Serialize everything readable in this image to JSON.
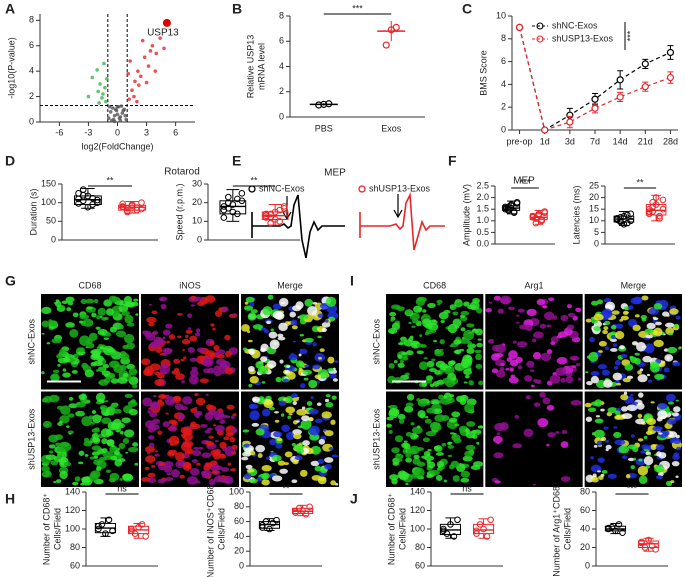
{
  "chart_data": [
    {
      "type": "scatter",
      "panel": "A",
      "xlabel": "log2(FoldChange)",
      "ylabel": "-log10(P-value)",
      "xlim": [
        -8,
        8
      ],
      "xticks": [
        -6,
        -3,
        0,
        3,
        6
      ],
      "ylim": [
        0,
        8.5
      ],
      "yticks": [
        0,
        2,
        4,
        6,
        8
      ],
      "thresholds": {
        "x": [
          -1,
          1
        ],
        "y": 1.3
      },
      "series": [
        {
          "color": "#555555",
          "x": [
            -0.9,
            -0.7,
            -0.5,
            -0.3,
            -0.1,
            0.1,
            0.3,
            0.5,
            0.7,
            0.9,
            -0.8,
            -0.4,
            0,
            0.4,
            0.8,
            -0.6,
            -0.2,
            0.2,
            0.6,
            0,
            -0.3,
            0.3
          ],
          "values": [
            0.3,
            0.8,
            1.1,
            0.5,
            0.9,
            1.2,
            0.4,
            0.7,
            1.0,
            0.2,
            1.2,
            0.2,
            0.6,
            1.25,
            0.5,
            0.1,
            1.0,
            0.3,
            0.9,
            1.2,
            0.05,
            0.1
          ]
        },
        {
          "color": "#3bb44a",
          "x": [
            -1.2,
            -1.5,
            -1.8,
            -2.1,
            -1.3,
            -2.6,
            -1.6,
            -1.1,
            -2.0,
            -1.4,
            -3.0,
            -1.9
          ],
          "values": [
            1.6,
            2.2,
            3.0,
            4.1,
            2.7,
            3.5,
            1.9,
            3.4,
            2.4,
            4.6,
            2.0,
            1.5
          ]
        },
        {
          "color": "#e8262a",
          "x": [
            1.2,
            1.5,
            1.8,
            2.1,
            2.4,
            2.8,
            3.2,
            3.6,
            4.0,
            4.4,
            1.3,
            1.7,
            2.2,
            2.6,
            3.0,
            3.4,
            3.9,
            4.8,
            1.1,
            2.0
          ],
          "values": [
            1.8,
            2.5,
            3.2,
            4.0,
            3.6,
            5.1,
            4.4,
            6.0,
            5.4,
            6.6,
            4.8,
            2.0,
            2.9,
            6.4,
            3.1,
            5.6,
            4.0,
            5.8,
            3.8,
            1.6
          ]
        },
        {
          "color": "#e00000",
          "x": [
            5.1
          ],
          "values": [
            7.8
          ]
        }
      ],
      "annotation": "USP13"
    },
    {
      "type": "dot",
      "panel": "B",
      "ylabel": [
        "Relative USP13",
        "mRNA level"
      ],
      "categories": [
        "PBS",
        "Exos"
      ],
      "values": [
        1.0,
        6.8
      ],
      "errors": [
        0.1,
        0.8
      ],
      "points": [
        [
          0.95,
          1.0,
          1.05
        ],
        [
          5.7,
          6.9,
          7.1
        ]
      ],
      "colors": [
        "#000000",
        "#e8262a"
      ],
      "ylim": [
        0,
        8
      ],
      "yticks": [
        0,
        2,
        4,
        6,
        8
      ],
      "significance": "***"
    },
    {
      "type": "line",
      "panel": "C",
      "ylabel": "BMS Score",
      "categories": [
        "pre-op",
        "1d",
        "3d",
        "7d",
        "14d",
        "21d",
        "28d"
      ],
      "series": [
        {
          "name": "shNC-Exos",
          "color": "#000000",
          "values": [
            9,
            0,
            1.3,
            2.7,
            4.4,
            5.8,
            6.8
          ],
          "errors": [
            0,
            0,
            0.6,
            0.5,
            0.8,
            0.4,
            0.6
          ]
        },
        {
          "name": "shUSP13-Exos",
          "color": "#e8262a",
          "values": [
            9,
            0,
            0.7,
            1.9,
            2.9,
            3.8,
            4.6
          ],
          "errors": [
            0,
            0,
            0.5,
            0.4,
            0.4,
            0.4,
            0.5
          ]
        }
      ],
      "ylim": [
        0,
        10
      ],
      "yticks": [
        0,
        2,
        4,
        6,
        8,
        10
      ],
      "significance": "***"
    },
    {
      "type": "box",
      "panel": "D",
      "title": "Rotarod",
      "ylabel": "Duration (s)",
      "ylim": [
        0,
        150
      ],
      "yticks": [
        0,
        50,
        100,
        150
      ],
      "significance": "**",
      "groups": [
        {
          "color": "#000000",
          "points": [
            110,
            105,
            118,
            95,
            100,
            125,
            135,
            88,
            112,
            107,
            98,
            120
          ],
          "box": [
            85,
            95,
            108,
            118,
            138
          ]
        },
        {
          "color": "#e8262a",
          "points": [
            90,
            85,
            95,
            80,
            100,
            88,
            75,
            92,
            87,
            83,
            97,
            78
          ],
          "box": [
            72,
            80,
            88,
            93,
            103
          ]
        }
      ]
    },
    {
      "type": "box",
      "ylabel": "Speed (r.p.m.)",
      "ylim": [
        0,
        30
      ],
      "yticks": [
        0,
        10,
        20,
        30
      ],
      "significance": "**",
      "groups": [
        {
          "color": "#000000",
          "points": [
            18,
            20,
            15,
            22,
            25,
            12,
            17,
            19,
            14,
            21,
            16,
            23
          ],
          "box": [
            10,
            14,
            18,
            21,
            27
          ]
        },
        {
          "color": "#e8262a",
          "points": [
            14,
            12,
            15,
            10,
            17,
            13,
            9,
            11,
            16,
            18,
            12,
            14
          ],
          "box": [
            8,
            11,
            13,
            15,
            19
          ]
        }
      ]
    },
    {
      "type": "trace",
      "panel": "E",
      "title": "MEP",
      "series": [
        {
          "name": "shNC-Exos",
          "color": "#000000"
        },
        {
          "name": "shUSP13-Exos",
          "color": "#e8262a"
        }
      ]
    },
    {
      "type": "box",
      "panel": "F",
      "title": "MEP",
      "ylabel": "Amplitude (mV)",
      "ylim": [
        0,
        2.5
      ],
      "yticks": [
        {
          "value": 0,
          "label": "0.0"
        },
        0.5,
        {
          "value": 1,
          "label": "1.0"
        },
        1.5,
        {
          "value": 2,
          "label": "2.0"
        },
        2.5
      ],
      "significance": "***",
      "groups": [
        {
          "color": "#000000",
          "points": [
            1.6,
            1.5,
            1.7,
            1.4,
            1.8,
            1.55,
            1.45,
            1.65,
            1.35,
            1.75,
            1.5,
            1.6
          ],
          "box": [
            1.3,
            1.45,
            1.55,
            1.65,
            1.85
          ]
        },
        {
          "color": "#e8262a",
          "points": [
            1.2,
            1.1,
            1.3,
            1.0,
            1.4,
            1.15,
            0.9,
            1.25,
            1.05,
            1.35,
            1.2,
            1.1
          ],
          "box": [
            0.85,
            1.05,
            1.15,
            1.3,
            1.45
          ]
        }
      ]
    },
    {
      "type": "box",
      "ylabel": "Latencies (ms)",
      "ylim": [
        0,
        25
      ],
      "yticks": [
        0,
        5,
        10,
        15,
        20,
        25
      ],
      "significance": "**",
      "groups": [
        {
          "color": "#000000",
          "points": [
            11,
            10,
            12,
            9,
            13,
            10.5,
            11.5,
            8.5,
            12.5,
            10,
            11,
            9.5
          ],
          "box": [
            8,
            9.5,
            10.75,
            12,
            14
          ]
        },
        {
          "color": "#e8262a",
          "points": [
            15,
            14,
            17,
            12,
            19,
            13,
            16,
            20,
            11,
            15,
            14,
            18
          ],
          "box": [
            10,
            12.5,
            14.5,
            17,
            21
          ]
        }
      ]
    },
    {
      "type": "micrograph",
      "panel": "G",
      "columns": [
        "CD68",
        "iNOS",
        "Merge"
      ],
      "column_colors": [
        "#3cdc3c",
        "#e02020",
        "#222222"
      ],
      "rows": [
        "shNC-Exos",
        "shUSP13-Exos"
      ]
    },
    {
      "type": "micrograph",
      "panel": "I",
      "columns": [
        "CD68",
        "Arg1",
        "Merge"
      ],
      "column_colors": [
        "#3cdc3c",
        "#e020e0",
        "#222222"
      ],
      "rows": [
        "shNC-Exos",
        "shUSP13-Exos"
      ]
    },
    {
      "type": "box",
      "panel": "H",
      "ylabel": [
        "Number of CD68⁺",
        "Cells/Field"
      ],
      "ylim": [
        60,
        140
      ],
      "yticks": [
        60,
        80,
        100,
        120,
        140
      ],
      "significance": "ns",
      "groups": [
        {
          "color": "#000000",
          "points": [
            100,
            105,
            95,
            110,
            98,
            103
          ],
          "box": [
            92,
            96,
            101,
            106,
            112
          ]
        },
        {
          "color": "#e8262a",
          "points": [
            98,
            95,
            102,
            105,
            92,
            100
          ],
          "box": [
            90,
            95,
            99,
            103,
            106
          ]
        }
      ]
    },
    {
      "type": "box",
      "ylabel": [
        "Number of iNOS⁺CD68⁺",
        "Cells/Field"
      ],
      "ylim": [
        0,
        100
      ],
      "yticks": [
        0,
        20,
        40,
        60,
        80,
        100
      ],
      "significance": "**",
      "groups": [
        {
          "color": "#000000",
          "points": [
            55,
            60,
            50,
            58,
            62,
            52
          ],
          "box": [
            48,
            51,
            56,
            60,
            64
          ]
        },
        {
          "color": "#e8262a",
          "points": [
            72,
            78,
            75,
            70,
            80,
            74
          ],
          "box": [
            68,
            71,
            74,
            78,
            82
          ]
        }
      ]
    },
    {
      "type": "box",
      "panel": "J",
      "ylabel": [
        "Number of CD68⁺",
        "Cells/Field"
      ],
      "ylim": [
        60,
        140
      ],
      "yticks": [
        60,
        80,
        100,
        120,
        140
      ],
      "significance": "ns",
      "groups": [
        {
          "color": "#000000",
          "points": [
            100,
            95,
            105,
            92,
            110,
            98
          ],
          "box": [
            90,
            94,
            99,
            105,
            112
          ]
        },
        {
          "color": "#e8262a",
          "points": [
            95,
            105,
            100,
            92,
            110,
            98
          ],
          "box": [
            90,
            95,
            99,
            105,
            111
          ]
        }
      ]
    },
    {
      "type": "box",
      "ylabel": [
        "Number of Arg1⁺CD68⁺",
        "Cells/Field"
      ],
      "ylim": [
        0,
        80
      ],
      "yticks": [
        0,
        20,
        40,
        60,
        80
      ],
      "significance": "***",
      "groups": [
        {
          "color": "#000000",
          "points": [
            40,
            42,
            38,
            45,
            36,
            41
          ],
          "box": [
            35,
            38,
            40,
            43,
            46
          ]
        },
        {
          "color": "#e8262a",
          "points": [
            25,
            20,
            28,
            22,
            18,
            26
          ],
          "box": [
            16,
            20,
            24,
            27,
            30
          ]
        }
      ]
    }
  ]
}
